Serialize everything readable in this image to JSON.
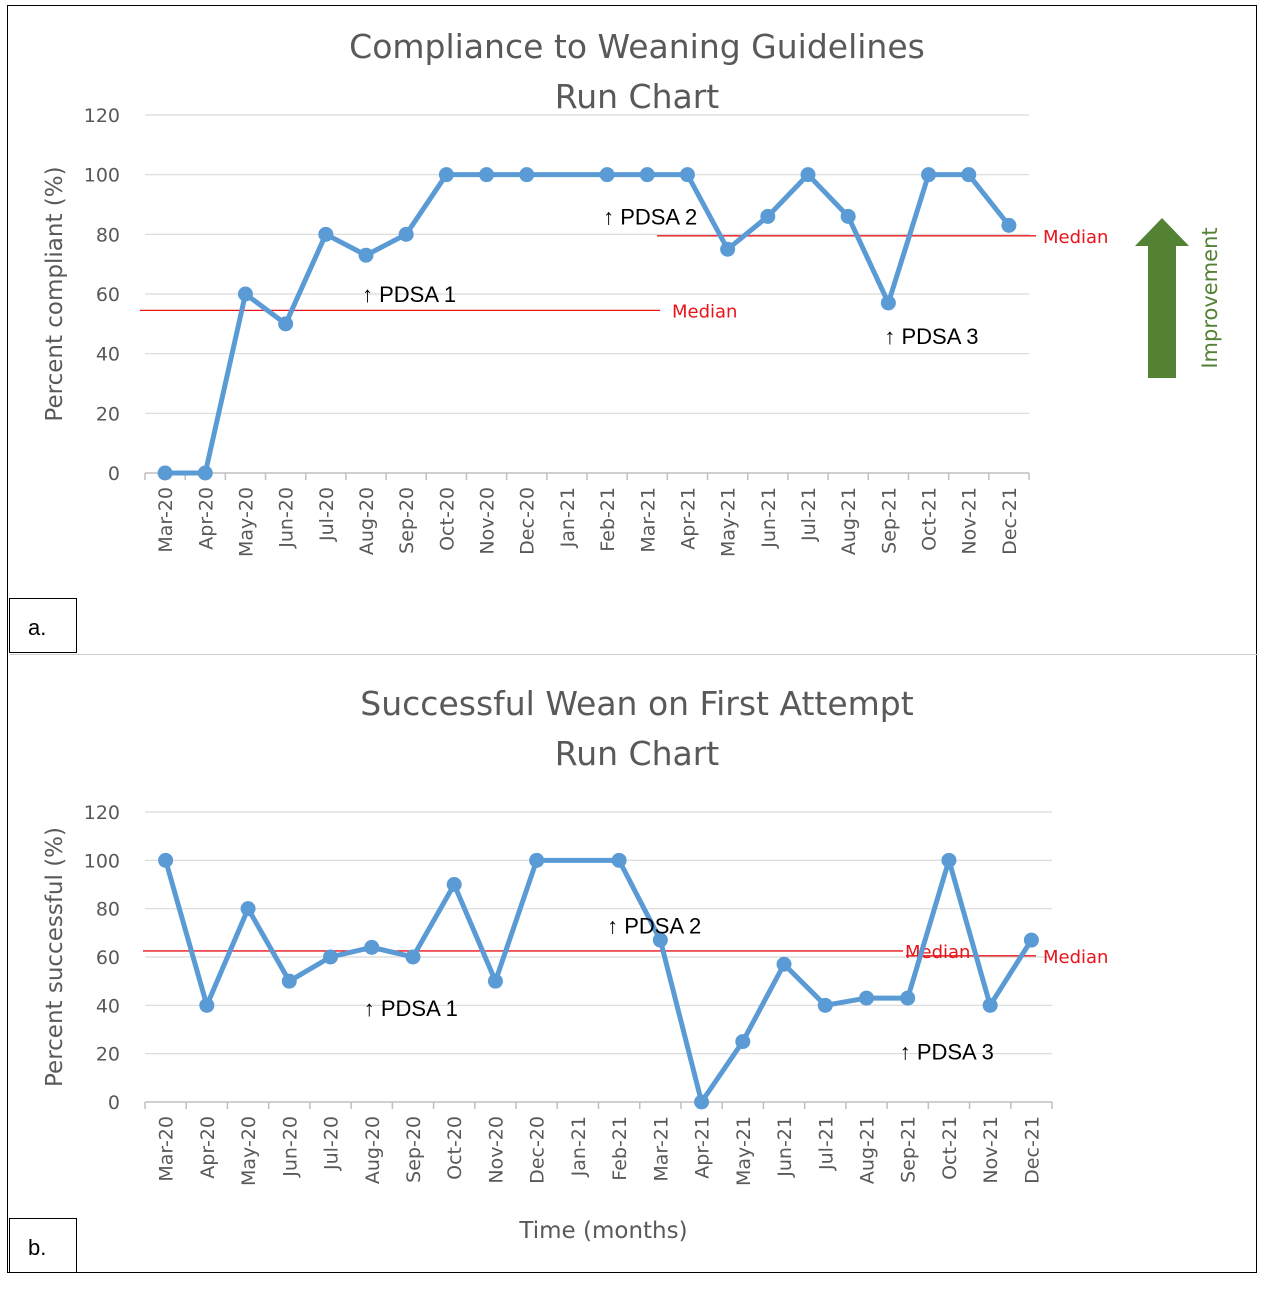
{
  "colors": {
    "series": "#5b9bd5",
    "median": "#e8141a",
    "grid": "#d9d9d9",
    "text": "#595959",
    "improvement": "#548235"
  },
  "panels": [
    {
      "label": "a."
    },
    {
      "label": "b."
    }
  ],
  "chart_data": [
    {
      "type": "line",
      "title": [
        "Compliance to Weaning Guidelines",
        "Run Chart"
      ],
      "ylabel": "Percent compliant (%)",
      "xlabel": "",
      "ylim": [
        0,
        120
      ],
      "yticks": [
        0,
        20,
        40,
        60,
        80,
        100,
        120
      ],
      "grid": true,
      "categories": [
        "Mar-20",
        "Apr-20",
        "May-20",
        "Jun-20",
        "Jul-20",
        "Aug-20",
        "Sep-20",
        "Oct-20",
        "Nov-20",
        "Dec-20",
        "Jan-21",
        "Feb-21",
        "Mar-21",
        "Apr-21",
        "May-21",
        "Jun-21",
        "Jul-21",
        "Aug-21",
        "Sep-21",
        "Oct-21",
        "Nov-21",
        "Dec-21"
      ],
      "series": [
        {
          "values": [
            0,
            0,
            60,
            50,
            80,
            73,
            80,
            100,
            100,
            100,
            null,
            100,
            100,
            100,
            75,
            86,
            100,
            86,
            57,
            100,
            100,
            83
          ]
        }
      ],
      "medians": [
        {
          "label": "Median",
          "value": 54.5,
          "from": "Mar-20",
          "to": "Feb-21",
          "label_side": "right"
        },
        {
          "label": "Median",
          "value": 79.5,
          "from": "Mar-21",
          "to": "Dec-21",
          "label_side": "right"
        }
      ],
      "annotations": [
        {
          "text": "↑ PDSA 1",
          "x": "Aug-20",
          "y": 60
        },
        {
          "text": "↑ PDSA 2",
          "x": "Feb-21",
          "y": 86
        },
        {
          "text": "↑ PDSA 3",
          "x": "Sep-21",
          "y": 46
        }
      ],
      "improvement": {
        "label": "Improvement",
        "direction": "up"
      }
    },
    {
      "type": "line",
      "title": [
        "Successful Wean on First Attempt",
        "Run Chart"
      ],
      "ylabel": "Percent successful (%)",
      "xlabel": "Time (months)",
      "ylim": [
        0,
        120
      ],
      "yticks": [
        0,
        20,
        40,
        60,
        80,
        100,
        120
      ],
      "grid": true,
      "categories": [
        "Mar-20",
        "Apr-20",
        "May-20",
        "Jun-20",
        "Jul-20",
        "Aug-20",
        "Sep-20",
        "Oct-20",
        "Nov-20",
        "Dec-20",
        "Jan-21",
        "Feb-21",
        "Mar-21",
        "Apr-21",
        "May-21",
        "Jun-21",
        "Jul-21",
        "Aug-21",
        "Sep-21",
        "Oct-21",
        "Nov-21",
        "Dec-21"
      ],
      "series": [
        {
          "values": [
            100,
            40,
            80,
            50,
            60,
            64,
            60,
            90,
            50,
            100,
            null,
            100,
            67,
            0,
            25,
            57,
            40,
            43,
            43,
            100,
            40,
            67
          ]
        }
      ],
      "medians": [
        {
          "label": "Median",
          "value": 62.5,
          "from": "Mar-20",
          "to": "Sep-21",
          "label_side": "right"
        },
        {
          "label": "Median",
          "value": 60.5,
          "from": "Sep-21",
          "to": "Dec-21",
          "label_side": "right"
        }
      ],
      "annotations": [
        {
          "text": "↑ PDSA 1",
          "x": "Aug-20",
          "y": 39
        },
        {
          "text": "↑ PDSA 2",
          "x": "Feb-21",
          "y": 73
        },
        {
          "text": "↑ PDSA 3",
          "x": "Sep-21",
          "y": 21
        }
      ]
    }
  ]
}
